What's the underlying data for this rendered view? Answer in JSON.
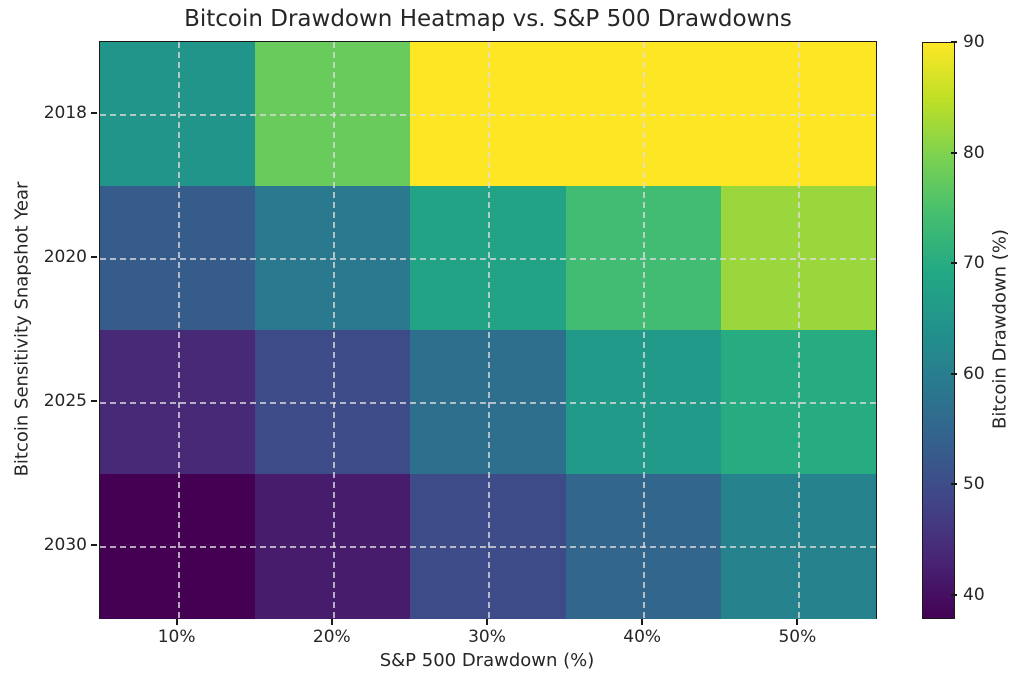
{
  "title": "Bitcoin Drawdown Heatmap vs. S&P 500 Drawdowns",
  "chart_data": {
    "type": "heatmap",
    "title": "Bitcoin Drawdown Heatmap vs. S&P 500 Drawdowns",
    "xlabel": "S&P 500 Drawdown (%)",
    "ylabel": "Bitcoin Sensitivity Snapshot Year",
    "x_tick_labels": [
      "10%",
      "20%",
      "30%",
      "40%",
      "50%"
    ],
    "y_tick_labels": [
      "2018",
      "2020",
      "2025",
      "2030"
    ],
    "values": [
      [
        65,
        78,
        90,
        90,
        90
      ],
      [
        53,
        59,
        68,
        74,
        82
      ],
      [
        44,
        50,
        57,
        66,
        70
      ],
      [
        38,
        42,
        50,
        55,
        61
      ]
    ],
    "colormap": "viridis",
    "vmin": 38,
    "vmax": 90,
    "grid": true,
    "grid_linestyle": "dashed",
    "colorbar": {
      "label": "Bitcoin Drawdown (%)",
      "ticks": [
        40,
        50,
        60,
        70,
        80,
        90
      ],
      "position": "right"
    },
    "colors": {
      "background": "#ffffff",
      "text": "#262626",
      "spine": "#1a1a1a",
      "gridline": "#dedede",
      "viridis_low": "#440154",
      "viridis_high": "#fde725"
    }
  }
}
